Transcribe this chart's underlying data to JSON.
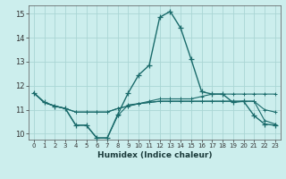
{
  "xlabel": "Humidex (Indice chaleur)",
  "background_color": "#cceeed",
  "grid_color": "#aad6d4",
  "line_color": "#1a6b6b",
  "xlim": [
    -0.5,
    23.5
  ],
  "ylim": [
    9.75,
    15.35
  ],
  "yticks": [
    10,
    11,
    12,
    13,
    14,
    15
  ],
  "x": [
    0,
    1,
    2,
    3,
    4,
    5,
    6,
    7,
    8,
    9,
    10,
    11,
    12,
    13,
    14,
    15,
    16,
    17,
    18,
    19,
    20,
    21,
    22,
    23
  ],
  "line1": [
    11.7,
    11.3,
    11.15,
    11.05,
    10.35,
    10.35,
    9.82,
    9.82,
    10.8,
    11.7,
    12.45,
    12.85,
    14.85,
    15.1,
    14.4,
    13.1,
    11.75,
    11.65,
    11.65,
    11.3,
    11.35,
    10.75,
    10.4,
    10.35
  ],
  "line2": [
    11.7,
    11.3,
    11.15,
    11.05,
    10.9,
    10.9,
    10.9,
    10.9,
    11.05,
    11.15,
    11.25,
    11.35,
    11.45,
    11.45,
    11.45,
    11.45,
    11.55,
    11.65,
    11.65,
    11.65,
    11.65,
    11.65,
    11.65,
    11.65
  ],
  "line3": [
    11.7,
    11.3,
    11.15,
    11.05,
    10.9,
    10.9,
    10.9,
    10.9,
    11.05,
    11.15,
    11.25,
    11.3,
    11.35,
    11.35,
    11.35,
    11.35,
    11.35,
    11.35,
    11.35,
    11.35,
    11.35,
    11.35,
    11.0,
    10.9
  ],
  "line4": [
    11.7,
    11.3,
    11.15,
    11.05,
    10.35,
    10.35,
    9.82,
    9.82,
    10.75,
    11.2,
    11.25,
    11.3,
    11.35,
    11.35,
    11.35,
    11.35,
    11.35,
    11.35,
    11.35,
    11.35,
    11.35,
    11.35,
    10.55,
    10.4
  ]
}
